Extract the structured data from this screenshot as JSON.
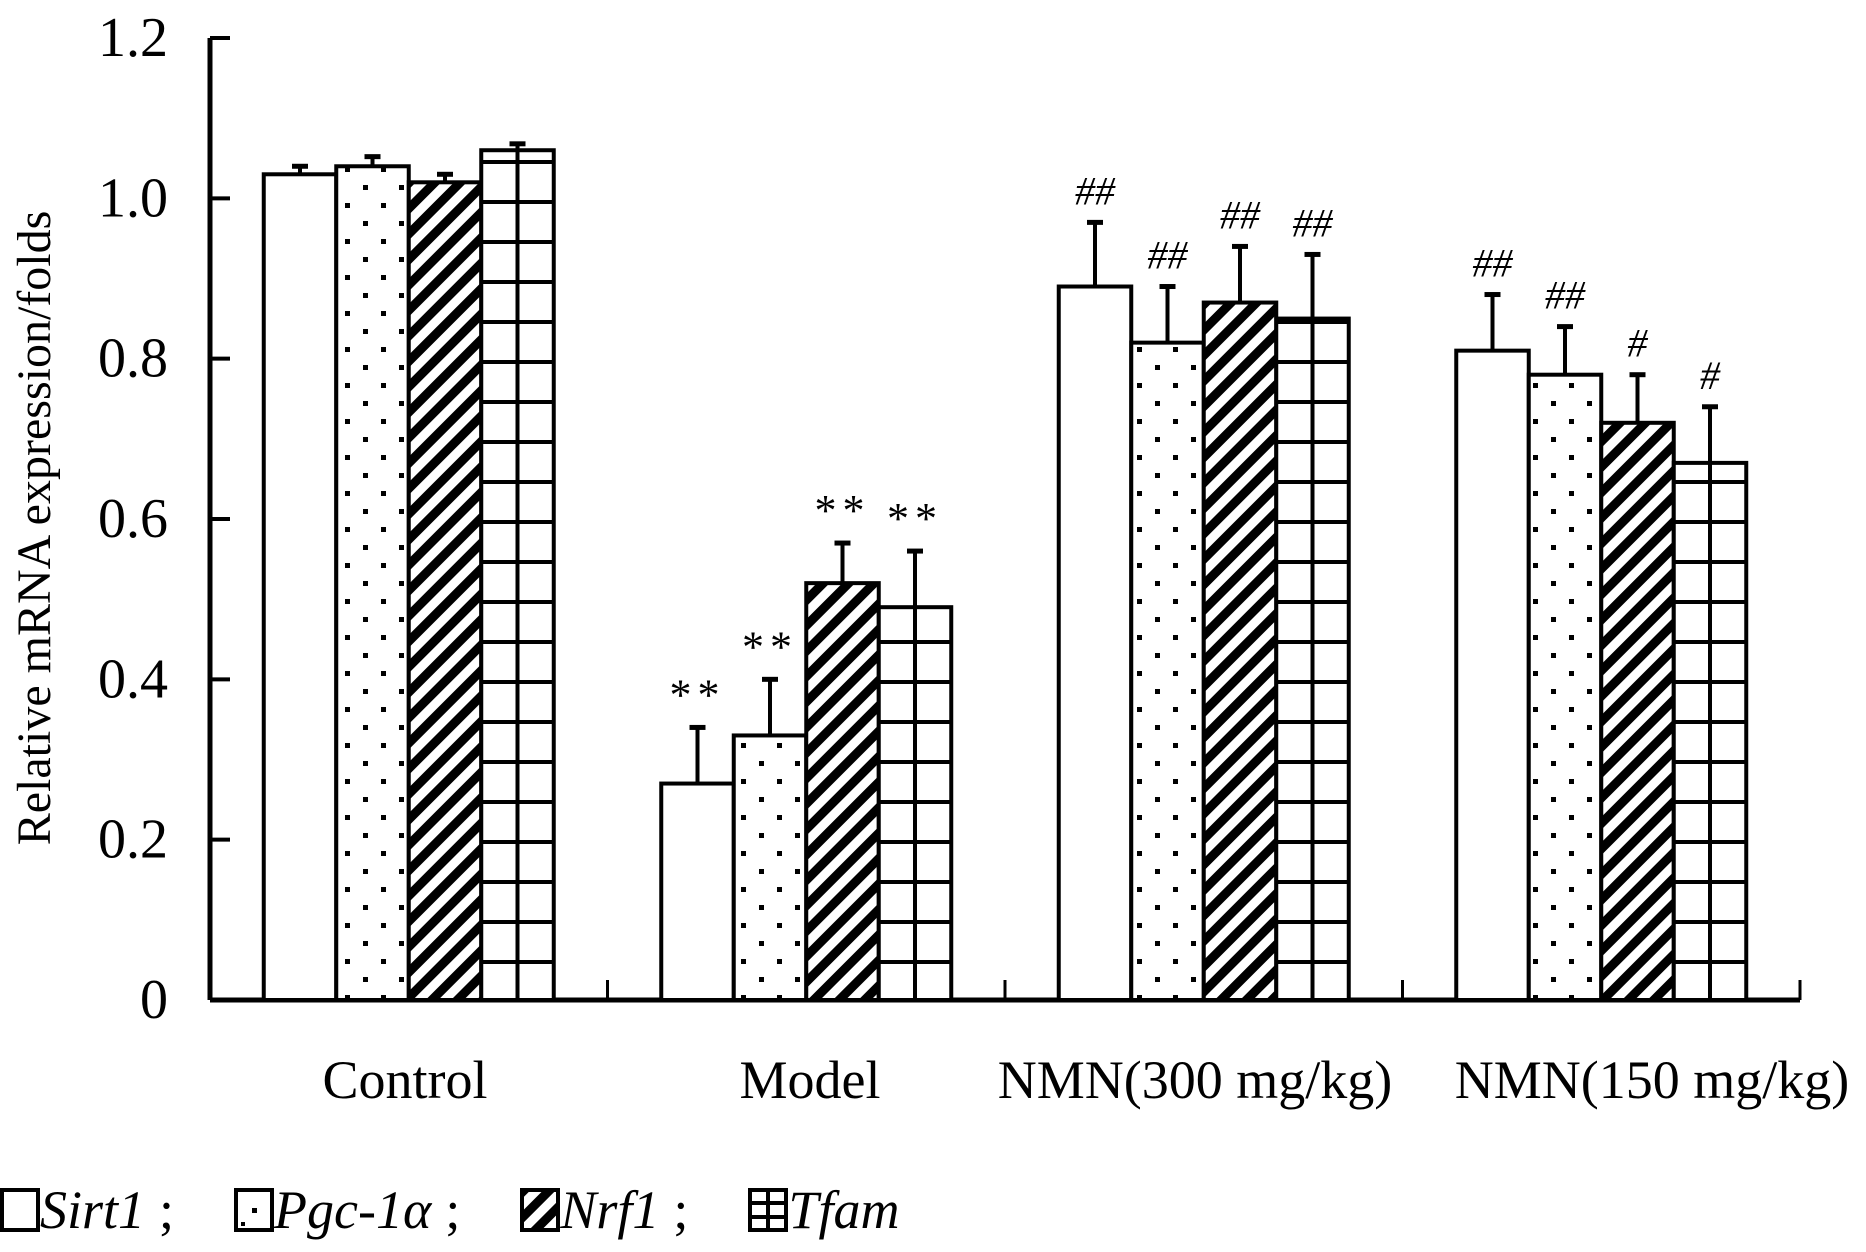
{
  "chart_data": {
    "type": "bar",
    "title": "",
    "xlabel": "",
    "ylabel": "Relative mRNA expression/folds",
    "ylim": [
      0,
      1.2
    ],
    "yticks": [
      0,
      0.2,
      0.4,
      0.6,
      0.8,
      1.0,
      1.2
    ],
    "ytick_labels": [
      "0",
      "0.2",
      "0.4",
      "0.6",
      "0.8",
      "1.0",
      "1.2"
    ],
    "grid": false,
    "legend_position": "bottom-left",
    "categories": [
      "Control",
      "Model",
      "NMN(300 mg/kg)",
      "NMN(150 mg/kg)"
    ],
    "series": [
      {
        "name": "Sirt1",
        "pattern": "blank",
        "values": [
          1.03,
          0.27,
          0.89,
          0.81
        ],
        "errors": [
          0.01,
          0.07,
          0.08,
          0.07
        ],
        "annotations": [
          "",
          "**",
          "##",
          "##"
        ]
      },
      {
        "name": "Pgc-1α",
        "pattern": "dots",
        "values": [
          1.04,
          0.33,
          0.82,
          0.78
        ],
        "errors": [
          0.012,
          0.07,
          0.07,
          0.06
        ],
        "annotations": [
          "",
          "**",
          "##",
          "##"
        ]
      },
      {
        "name": "Nrf1",
        "pattern": "diagonal",
        "values": [
          1.02,
          0.52,
          0.87,
          0.72
        ],
        "errors": [
          0.01,
          0.05,
          0.07,
          0.06
        ],
        "annotations": [
          "",
          "**",
          "##",
          "#"
        ]
      },
      {
        "name": "Tfam",
        "pattern": "grid",
        "values": [
          1.06,
          0.49,
          0.85,
          0.67
        ],
        "errors": [
          0.008,
          0.07,
          0.08,
          0.07
        ],
        "annotations": [
          "",
          "**",
          "##",
          "#"
        ]
      }
    ]
  },
  "legend": {
    "items": [
      {
        "label": "Sirt1",
        "separator": ";"
      },
      {
        "label": "Pgc-1α",
        "separator": ";"
      },
      {
        "label": "Nrf1",
        "separator": ";"
      },
      {
        "label": "Tfam",
        "separator": ""
      }
    ]
  },
  "colors": {
    "ink": "#000000",
    "background": "#ffffff"
  }
}
